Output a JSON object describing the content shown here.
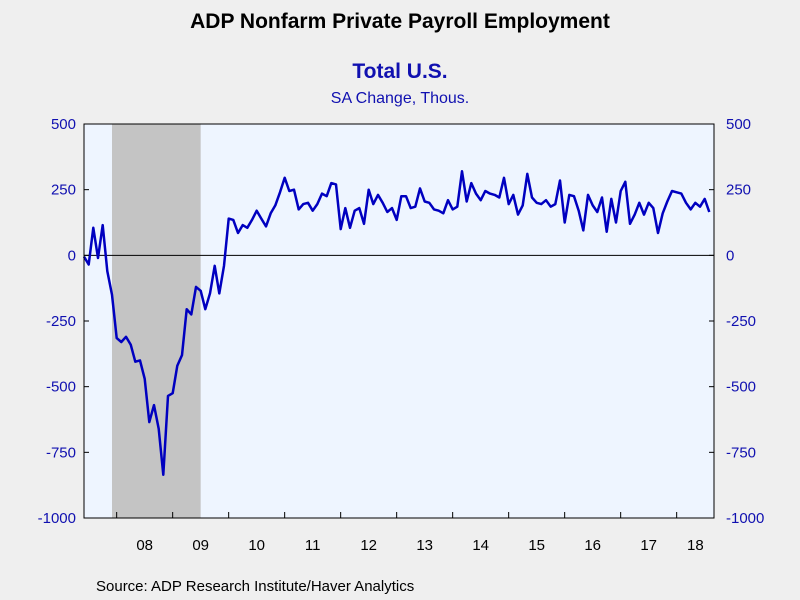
{
  "chart_data": {
    "type": "line",
    "title": "ADP Nonfarm Private Payroll Employment",
    "subtitle": "Total U.S.",
    "units": "SA Change, Thous.",
    "source": "Source:  ADP Research Institute/Haver Analytics",
    "ylim": [
      -1000,
      500
    ],
    "yticks": [
      "500",
      "250",
      "0",
      "-250",
      "-500",
      "-750",
      "-1000"
    ],
    "x_range": [
      "2007-06",
      "2018-09"
    ],
    "xtick_labels": [
      "08",
      "09",
      "10",
      "11",
      "12",
      "13",
      "14",
      "15",
      "16",
      "17",
      "18"
    ],
    "grid": false,
    "zero_line": true,
    "recession": {
      "start": "2007-12",
      "end": "2009-06"
    },
    "colors": {
      "series": "#0000c0",
      "recession": "#c4c4c4",
      "plot_bg": "#eef5ff",
      "axis_text": "#1010b0"
    },
    "series": [
      {
        "start": "2007-06",
        "values": [
          -5,
          -35,
          105,
          -10,
          115,
          -60,
          -150,
          -315,
          -330,
          -310,
          -340,
          -405,
          -400,
          -470,
          -635,
          -570,
          -660,
          -835,
          -535,
          -525,
          -420,
          -380,
          -205,
          -225,
          -120,
          -135,
          -205,
          -145,
          -40,
          -145,
          -40,
          140,
          135,
          85,
          115,
          105,
          135,
          170,
          140,
          110,
          160,
          190,
          240,
          295,
          245,
          250,
          175,
          195,
          200,
          170,
          195,
          235,
          225,
          275,
          270,
          100,
          180,
          105,
          170,
          180,
          120,
          250,
          195,
          230,
          200,
          165,
          180,
          135,
          225,
          225,
          180,
          185,
          255,
          205,
          200,
          175,
          170,
          160,
          210,
          175,
          185,
          320,
          205,
          275,
          235,
          210,
          245,
          235,
          230,
          220,
          295,
          195,
          230,
          155,
          190,
          310,
          220,
          200,
          195,
          210,
          185,
          195,
          285,
          125,
          230,
          225,
          170,
          95,
          230,
          190,
          165,
          220,
          90,
          215,
          125,
          245,
          280,
          120,
          155,
          200,
          155,
          200,
          180,
          85,
          160,
          205,
          245,
          240,
          235,
          200,
          175,
          200,
          185,
          215,
          165
        ]
      }
    ]
  }
}
